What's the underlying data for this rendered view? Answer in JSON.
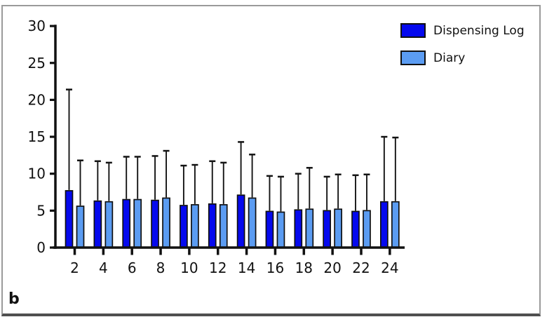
{
  "panel_label": "b",
  "legend": [
    {
      "label": "Dispensing Log",
      "color": "#0509ee",
      "swatch_icon": "dark-blue-square"
    },
    {
      "label": "Diary",
      "color": "#5b9cf2",
      "swatch_icon": "light-blue-square"
    }
  ],
  "colors": {
    "axis": "#111111",
    "error_bar": "#141414",
    "bar_border": "#101010",
    "frame_border": "#9a9a9a",
    "bottom_edge": "#4f4f4f",
    "background": "#ffffff"
  },
  "chart_data": {
    "type": "bar",
    "title": "",
    "xlabel": "",
    "ylabel": "",
    "categories": [
      "2",
      "4",
      "6",
      "8",
      "10",
      "12",
      "14",
      "16",
      "18",
      "20",
      "22",
      "24"
    ],
    "series": [
      {
        "name": "Dispensing Log",
        "color": "#0509ee",
        "values": [
          7.7,
          6.3,
          6.5,
          6.4,
          5.7,
          5.9,
          7.1,
          4.9,
          5.1,
          5.0,
          4.9,
          6.2
        ],
        "error_top": [
          21.4,
          11.7,
          12.3,
          12.4,
          11.1,
          11.7,
          14.3,
          9.7,
          10.0,
          9.6,
          9.8,
          15.0
        ]
      },
      {
        "name": "Diary",
        "color": "#5b9cf2",
        "values": [
          5.6,
          6.2,
          6.5,
          6.7,
          5.8,
          5.8,
          6.7,
          4.8,
          5.2,
          5.2,
          5.0,
          6.2
        ],
        "error_top": [
          11.8,
          11.5,
          12.3,
          13.1,
          11.2,
          11.5,
          12.6,
          9.6,
          10.8,
          9.9,
          9.9,
          14.9
        ]
      }
    ],
    "ylim": [
      0,
      30
    ],
    "yticks": [
      0,
      5,
      10,
      15,
      20,
      25,
      30
    ],
    "error_bars": "upper_only",
    "grid": false,
    "legend_position": "top-right"
  }
}
